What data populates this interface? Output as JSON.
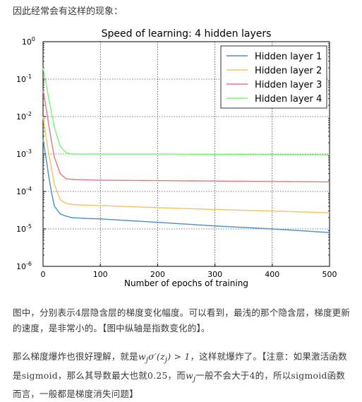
{
  "intro_text": "因此经常会有这样的现象：",
  "chart_data": {
    "type": "line",
    "title": "Speed of learning: 4 hidden layers",
    "xlabel": "Number of epochs of training",
    "ylabel": "",
    "xlim": [
      0,
      500
    ],
    "ylim_log10": [
      -6,
      0
    ],
    "y_scale": "log",
    "grid": true,
    "legend_placement": "top-right",
    "x_ticks": [
      "0",
      "100",
      "200",
      "300",
      "400",
      "500"
    ],
    "y_ticks": [
      "10^-6",
      "10^-5",
      "10^-4",
      "10^-3",
      "10^-2",
      "10^-1",
      "10^0"
    ],
    "series": [
      {
        "name": "Hidden layer 1",
        "color": "#4c8ec4",
        "x": [
          0,
          5,
          10,
          15,
          20,
          30,
          40,
          50,
          75,
          100,
          200,
          300,
          400,
          500
        ],
        "y": [
          0.0025,
          0.0008,
          0.00025,
          9e-05,
          4e-05,
          2.5e-05,
          2.2e-05,
          2e-05,
          1.9e-05,
          1.85e-05,
          1.5e-05,
          1.2e-05,
          1e-05,
          8e-06
        ]
      },
      {
        "name": "Hidden layer 2",
        "color": "#f2c463",
        "x": [
          0,
          5,
          10,
          15,
          20,
          30,
          40,
          50,
          75,
          100,
          200,
          300,
          400,
          500
        ],
        "y": [
          0.01,
          0.003,
          0.001,
          0.0004,
          0.00015,
          6e-05,
          4.8e-05,
          4.5e-05,
          4.3e-05,
          4.2e-05,
          3.7e-05,
          3.3e-05,
          3e-05,
          2.7e-05
        ]
      },
      {
        "name": "Hidden layer 3",
        "color": "#e8777a",
        "x": [
          0,
          5,
          10,
          15,
          20,
          30,
          40,
          50,
          75,
          100,
          200,
          300,
          400,
          500
        ],
        "y": [
          0.05,
          0.018,
          0.006,
          0.002,
          0.0008,
          0.0003,
          0.00022,
          0.00021,
          0.000205,
          0.0002,
          0.000195,
          0.00019,
          0.000185,
          0.00018
        ]
      },
      {
        "name": "Hidden layer 4",
        "color": "#7cf07c",
        "x": [
          0,
          5,
          10,
          15,
          20,
          30,
          40,
          50,
          75,
          100,
          200,
          300,
          400,
          500
        ],
        "y": [
          0.2,
          0.08,
          0.03,
          0.012,
          0.005,
          0.0016,
          0.0011,
          0.001,
          0.001,
          0.001,
          0.001,
          0.00098,
          0.00096,
          0.00095
        ]
      }
    ]
  },
  "para1": "图中，分别表示4层隐含层的梯度变化幅度。可以看到，最浅的那个隐含层，梯度更新的速度，是非常小的。【图中纵轴是指数变化的】。",
  "para2": {
    "before": "那么梯度爆炸也很好理解，就是",
    "formula1": "w",
    "formula1_sub": "j",
    "formula1_rest": "σ′(z",
    "formula1_sub2": "j",
    "formula1_end": ") > 1",
    "middle": "，这样就爆炸了。【注意：如果激活函数是sigmoid，那么其导数最大也就0.25，而",
    "formula2": "w",
    "formula2_sub": "j",
    "after": "一般不会大于4的，所以sigmoid函数而言，一般都是梯度消失问题】"
  }
}
